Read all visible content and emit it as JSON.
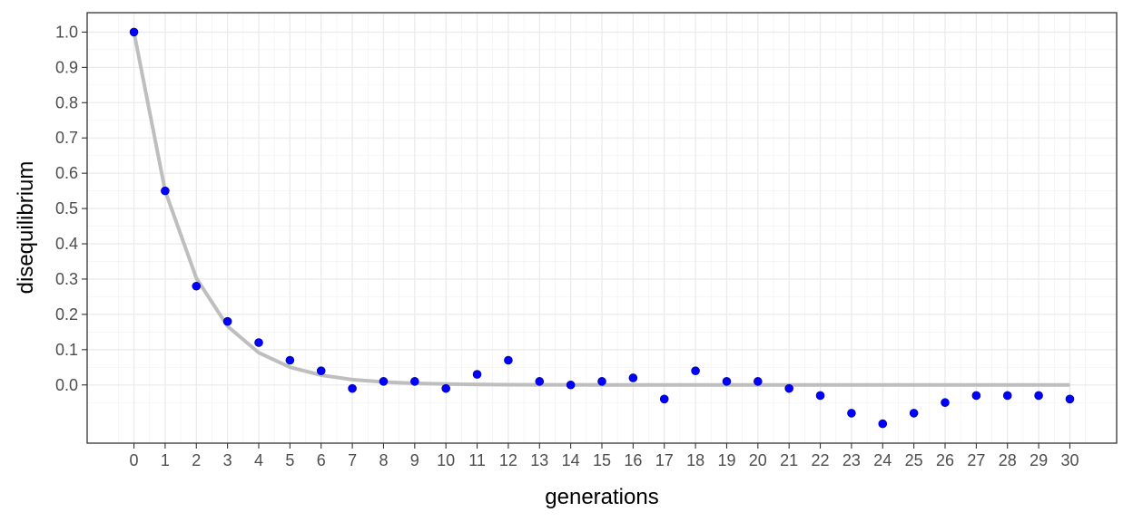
{
  "chart_data": {
    "type": "scatter",
    "xlabel": "generations",
    "ylabel": "disequilibrium",
    "xlim": [
      -1.5,
      31.5
    ],
    "ylim": [
      -0.165,
      1.055
    ],
    "x_ticks": [
      0,
      1,
      2,
      3,
      4,
      5,
      6,
      7,
      8,
      9,
      10,
      11,
      12,
      13,
      14,
      15,
      16,
      17,
      18,
      19,
      20,
      21,
      22,
      23,
      24,
      25,
      26,
      27,
      28,
      29,
      30
    ],
    "y_ticks": [
      0.0,
      0.1,
      0.2,
      0.3,
      0.4,
      0.5,
      0.6,
      0.7,
      0.8,
      0.9,
      1.0
    ],
    "y_tick_labels": [
      "0.0",
      "0.1",
      "0.2",
      "0.3",
      "0.4",
      "0.5",
      "0.6",
      "0.7",
      "0.8",
      "0.9",
      "1.0"
    ],
    "grid": true,
    "series": [
      {
        "kind": "points",
        "color": "#0000ff",
        "x": [
          0,
          1,
          2,
          3,
          4,
          5,
          6,
          7,
          8,
          9,
          10,
          11,
          12,
          13,
          14,
          15,
          16,
          17,
          18,
          19,
          20,
          21,
          22,
          23,
          24,
          25,
          26,
          27,
          28,
          29,
          30
        ],
        "y": [
          1.0,
          0.55,
          0.28,
          0.18,
          0.12,
          0.07,
          0.04,
          -0.01,
          0.01,
          0.01,
          -0.01,
          0.03,
          0.07,
          0.01,
          0.0,
          0.01,
          0.02,
          -0.04,
          0.04,
          0.01,
          0.01,
          -0.01,
          -0.03,
          -0.08,
          -0.11,
          -0.08,
          -0.05,
          -0.03,
          -0.03,
          -0.03,
          -0.04
        ]
      },
      {
        "kind": "line",
        "color": "#bebebe",
        "x": [
          0,
          1,
          2,
          3,
          4,
          5,
          6,
          7,
          8,
          9,
          10,
          11,
          12,
          13,
          14,
          15,
          16,
          17,
          18,
          19,
          20,
          21,
          22,
          23,
          24,
          25,
          26,
          27,
          28,
          29,
          30
        ],
        "y": [
          1.0,
          0.55,
          0.3025,
          0.1664,
          0.0915,
          0.0503,
          0.0277,
          0.0152,
          0.0084,
          0.0046,
          0.0025,
          0.0014,
          0.0008,
          0.0004,
          0.0002,
          0.0001,
          0.0001,
          0.0,
          0.0,
          0.0,
          0.0,
          0.0,
          0.0,
          0.0,
          0.0,
          0.0,
          0.0,
          0.0,
          0.0,
          0.0,
          0.0
        ]
      }
    ]
  }
}
